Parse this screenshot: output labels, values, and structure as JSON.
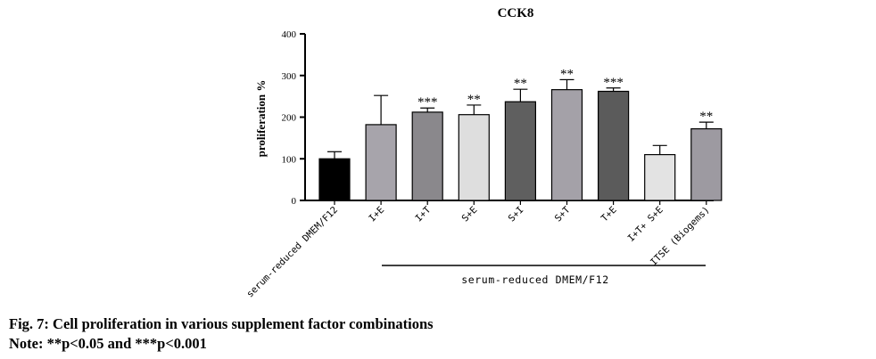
{
  "chart_data": {
    "type": "bar",
    "title": "CCK8",
    "ylabel": "proliferation %",
    "ylim": [
      0,
      400
    ],
    "yticks": [
      0,
      100,
      200,
      300,
      400
    ],
    "categories": [
      "serum-reduced DMEM/F12",
      "I+E",
      "I+T",
      "S+E",
      "S+I",
      "S+T",
      "T+E",
      "I+T+ S+E",
      "ITSE (Biogems)"
    ],
    "values": [
      100,
      182,
      212,
      206,
      237,
      266,
      262,
      110,
      172
    ],
    "errors": [
      17,
      70,
      10,
      23,
      30,
      24,
      8,
      22,
      16
    ],
    "significance": [
      "",
      "",
      "***",
      "**",
      "**",
      "**",
      "***",
      "",
      "**"
    ],
    "colors": [
      "#000000",
      "#a7a4ab",
      "#8a888c",
      "#dedede",
      "#5f5f5f",
      "#a4a1a8",
      "#5b5b5b",
      "#e3e3e3",
      "#9d9aa1"
    ],
    "group_label": "serum-reduced DMEM/F12",
    "grid": false
  },
  "caption": {
    "line1": "Fig. 7: Cell proliferation in various supplement factor combinations",
    "line2": "Note: **p<0.05 and ***p<0.001"
  }
}
